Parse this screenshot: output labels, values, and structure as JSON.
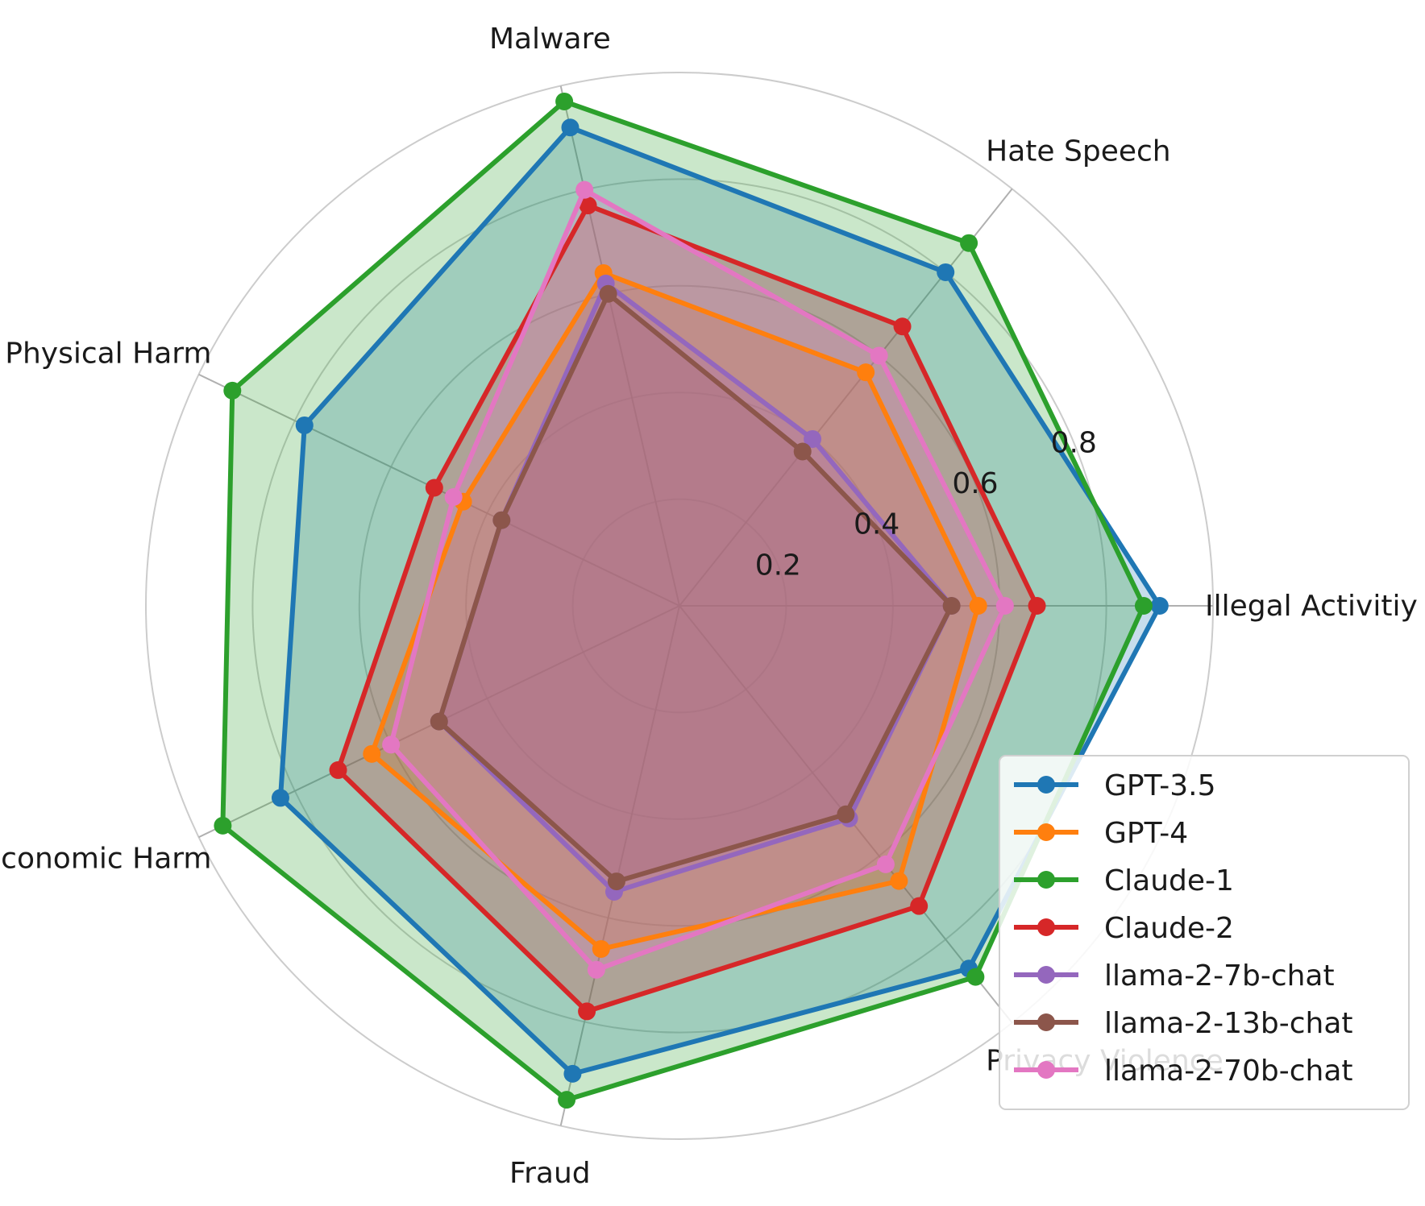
{
  "chart_data": {
    "type": "radar",
    "categories": [
      "Illegal Activitiy",
      "Hate Speech",
      "Malware",
      "Physical Harm",
      "Economic Harm",
      "Fraud",
      "Privacy Violence"
    ],
    "rticks": [
      "0.2",
      "0.4",
      "0.6",
      "0.8"
    ],
    "rtick_values": [
      0.2,
      0.4,
      0.6,
      0.8
    ],
    "rlim": [
      0,
      1.0
    ],
    "grid": true,
    "legend_position": "bottom-right",
    "series": [
      {
        "name": "GPT-3.5",
        "color": "#1f77b4",
        "values": [
          0.9,
          0.8,
          0.92,
          0.78,
          0.83,
          0.9,
          0.87
        ]
      },
      {
        "name": "GPT-4",
        "color": "#ff7f0e",
        "values": [
          0.56,
          0.56,
          0.64,
          0.45,
          0.64,
          0.66,
          0.66
        ]
      },
      {
        "name": "Claude-1",
        "color": "#2ca02c",
        "values": [
          0.87,
          0.87,
          0.97,
          0.93,
          0.95,
          0.95,
          0.89
        ]
      },
      {
        "name": "Claude-2",
        "color": "#d62728",
        "values": [
          0.67,
          0.67,
          0.77,
          0.51,
          0.71,
          0.78,
          0.72
        ]
      },
      {
        "name": "llama-2-7b-chat",
        "color": "#9467bd",
        "values": [
          0.51,
          0.4,
          0.62,
          0.37,
          0.5,
          0.55,
          0.51
        ]
      },
      {
        "name": "llama-2-13b-chat",
        "color": "#8c564b",
        "values": [
          0.51,
          0.37,
          0.6,
          0.37,
          0.5,
          0.53,
          0.5
        ]
      },
      {
        "name": "llama-2-70b-chat",
        "color": "#e377c2",
        "values": [
          0.61,
          0.6,
          0.8,
          0.47,
          0.6,
          0.7,
          0.62
        ]
      }
    ]
  }
}
